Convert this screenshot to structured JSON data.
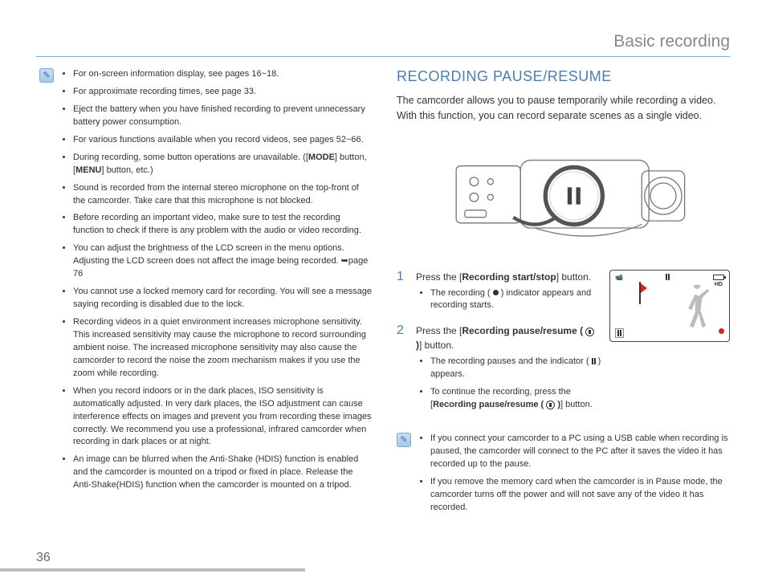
{
  "header": "Basic recording",
  "page_number": "36",
  "left_notes": [
    "For on-screen information display, see pages 16~18.",
    "For approximate recording times, see page 33.",
    "Eject the battery when you have finished recording to prevent unnecessary battery power consumption.",
    "For various functions available when you record videos, see pages 52~66.",
    "During recording, some button operations are unavailable. ([<b>MODE</b>] button, [<b>MENU</b>] button, etc.)",
    "Sound is recorded from the internal stereo microphone on the top-front of the camcorder. Take care that this microphone is not blocked.",
    "Before recording an important video, make sure to test the recording function to check if there is any problem with the audio or video recording.",
    "You can adjust the brightness of the LCD screen in the menu options. Adjusting the LCD screen does not affect the image being recorded. ➥page 76",
    "You cannot use a locked memory card for recording. You will see a message saying recording is disabled due to the lock.",
    "Recording videos in a quiet environment increases microphone sensitivity. This increased sensitivity may cause the microphone to record surrounding ambient noise. The increased microphone sensitivity may also cause the camcorder to record the noise the zoom mechanism makes if you use the zoom while recording.",
    "When you record indoors or in the dark places, ISO sensitivity is automatically adjusted. In very dark places, the ISO adjustment can cause  interference effects on images and prevent you from recording these images correctly. We recommend you use a professional, infrared camcorder when recording in dark places or at night.",
    "An image can be blurred when the Anti-Shake (HDIS) function is enabled and the camcorder is mounted on a tripod or fixed in place. Release the Anti-Shake(HDIS) function when the camcorder is mounted on a tripod."
  ],
  "section_title": "RECORDING PAUSE/RESUME",
  "intro": "The camcorder allows you to pause temporarily while recording a video. With this function, you can record separate scenes as a single video.",
  "steps": [
    {
      "num": "1",
      "text": "Press the [<b>Recording start/stop</b>] button.",
      "sub": [
        "The recording ( <span class=\"rec-dot-inline\"></span> ) indicator appears and recording starts."
      ]
    },
    {
      "num": "2",
      "text": "Press the [<b>Recording pause/resume ( <span class=\"pause-circle\"></span> )</b>] button.",
      "sub": [
        "The recording pauses and the indicator ( <span class=\"pause-glyph\"><span></span><span></span></span> ) appears.",
        "To continue the recording, press the [<b>Recording pause/resume ( <span class=\"pause-circle\"></span> )</b>] button."
      ]
    }
  ],
  "right_notes": [
    "If you connect your camcorder to a PC using a USB cable when recording is paused, the camcorder will connect to the PC after it saves the video it has recorded up to the pause.",
    "If you remove the memory card when the camcorder is in Pause mode, the camcorder turns off the power and will not save any of the video it has recorded."
  ],
  "colors": {
    "accent": "#4a7fb5",
    "rule": "#7fa8d4",
    "header_text": "#888888",
    "body_text": "#333333",
    "rec_red": "#d22222"
  }
}
